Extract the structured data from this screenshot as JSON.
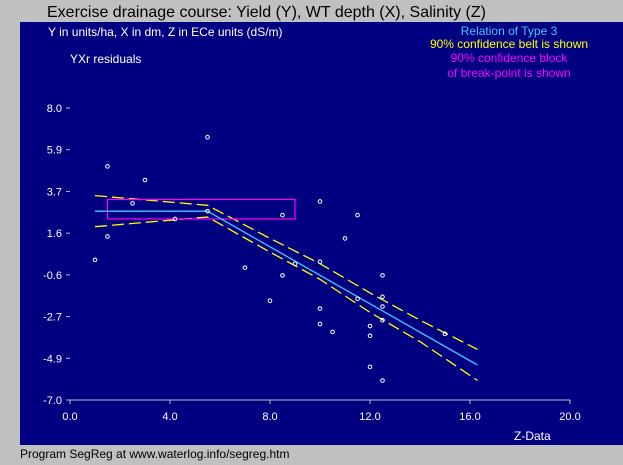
{
  "window": {
    "title": "Exercise drainage course: Yield (Y), WT depth (X), Salinity (Z)",
    "footer": "Program SegReg at www.waterlog.info/segreg.htm"
  },
  "colors": {
    "panel": "#000080",
    "frame": "#c0c0c0",
    "regression_line": "#40c8ff",
    "confidence_belt": "#ffff00",
    "breakpoint_block": "#ff00ff",
    "points": "#ffffff",
    "text": "#ffffff"
  },
  "chart_data": {
    "type": "scatter",
    "units_note": "Y in units/ha, X in dm, Z in ECe units (dS/m)",
    "ylabel": "YXr residuals",
    "xlabel": "Z-Data",
    "legend": {
      "relation": "Relation of Type 3",
      "belt": "90% confidence belt is shown",
      "block_line1": "90% confidence block",
      "block_line2": "of break-point is shown",
      "placement": "top-right"
    },
    "xlim": [
      0,
      20
    ],
    "ylim": [
      -7,
      8
    ],
    "x_ticks": [
      "0.0",
      "4.0",
      "8.0",
      "12.0",
      "16.0",
      "20.0"
    ],
    "y_ticks": [
      "8.0",
      "5.9",
      "3.7",
      "1.6",
      "-0.6",
      "-2.7",
      "-4.9",
      "-7.0"
    ],
    "grid": false,
    "regression": {
      "x": [
        1.0,
        5.5,
        16.3
      ],
      "y": [
        2.7,
        2.7,
        -5.2
      ]
    },
    "belt_upper": {
      "x": [
        1.0,
        5.5,
        8.0,
        10.0,
        12.0,
        14.0,
        16.3
      ],
      "y": [
        3.5,
        3.0,
        1.3,
        0.0,
        -1.5,
        -2.9,
        -4.4
      ]
    },
    "belt_lower": {
      "x": [
        1.0,
        5.5,
        8.0,
        10.0,
        12.0,
        14.0,
        16.3
      ],
      "y": [
        1.9,
        2.4,
        0.6,
        -0.8,
        -2.5,
        -4.0,
        -6.0
      ]
    },
    "breakpoint_block": {
      "x_range": [
        1.5,
        9.0
      ],
      "y_range": [
        2.3,
        3.3
      ]
    },
    "points": {
      "x": [
        1.0,
        1.5,
        1.5,
        2.5,
        3.0,
        4.2,
        5.5,
        5.5,
        7.0,
        8.0,
        8.5,
        8.5,
        9.0,
        10.0,
        10.0,
        10.0,
        10.0,
        10.5,
        11.0,
        11.5,
        11.5,
        12.0,
        12.0,
        12.0,
        12.5,
        12.5,
        12.5,
        12.5,
        12.5,
        15.0
      ],
      "y": [
        0.2,
        1.4,
        5.0,
        3.1,
        4.3,
        2.3,
        6.5,
        2.7,
        -0.2,
        -1.9,
        2.5,
        -0.6,
        0.0,
        3.2,
        0.1,
        -2.3,
        -3.1,
        -3.5,
        1.3,
        2.5,
        -1.8,
        -3.7,
        -5.3,
        -3.2,
        -0.6,
        -1.7,
        -2.2,
        -2.9,
        -6.0,
        -3.6
      ]
    }
  }
}
